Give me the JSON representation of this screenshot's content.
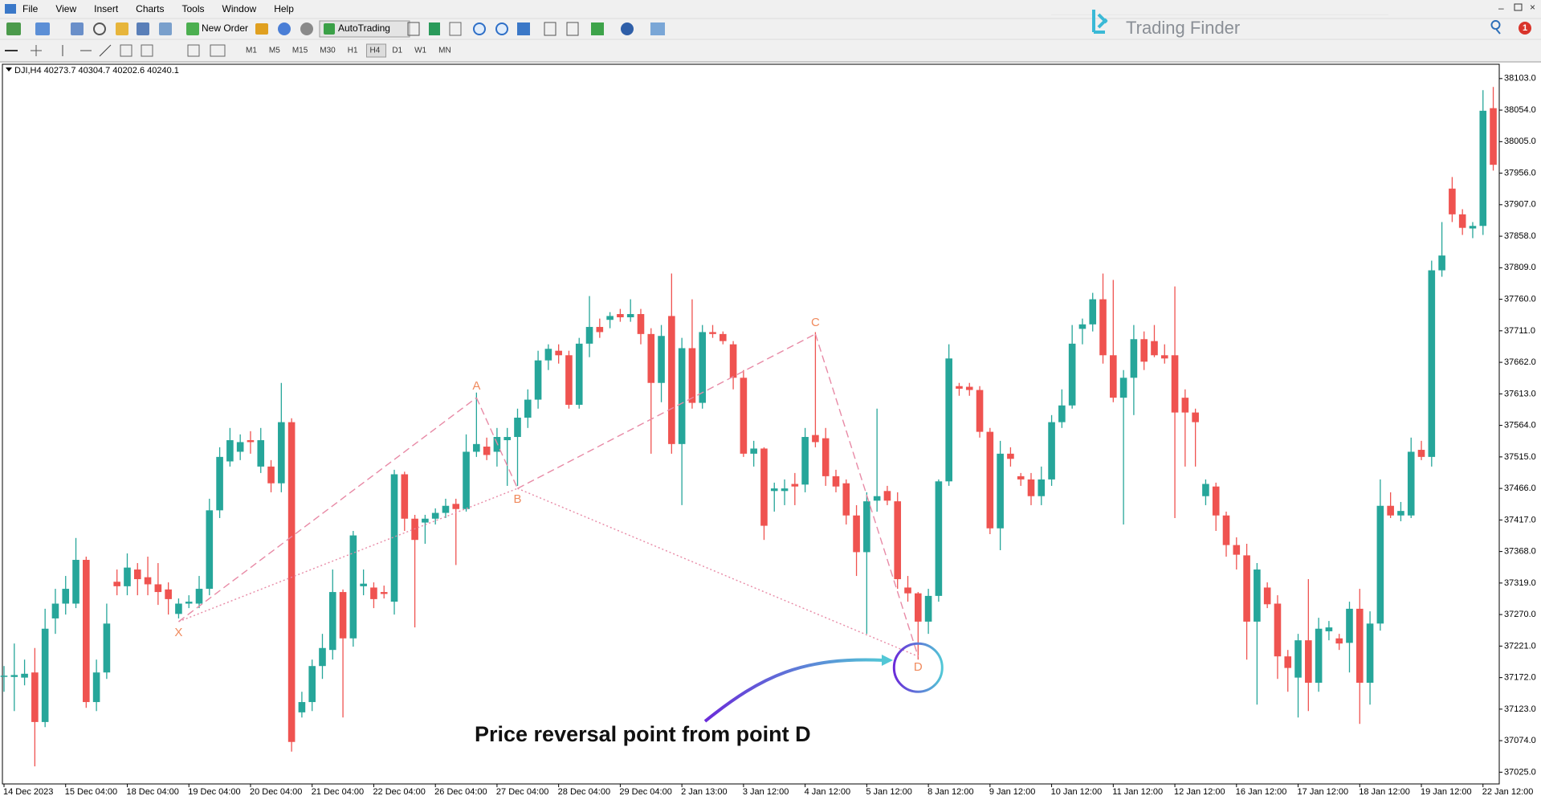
{
  "menu": [
    "File",
    "View",
    "Insert",
    "Charts",
    "Tools",
    "Window",
    "Help"
  ],
  "toolbar": {
    "new_order": "New Order",
    "autotrading": "AutoTrading",
    "timeframes": [
      "M1",
      "M5",
      "M15",
      "M30",
      "H1",
      "H4",
      "D1",
      "W1",
      "MN"
    ]
  },
  "logo": "Trading Finder",
  "notification_count": 1,
  "chart_data": {
    "type": "candlestick",
    "title": "DJI,H4  40273.7 40304.7 40202.6 40240.1",
    "annotation": "Price reversal point from point D",
    "up_color": "#26a69a",
    "down_color": "#ef5350",
    "ylim": [
      37008,
      38124
    ],
    "yticks": [
      {
        "value": 38103,
        "label": "38103.0"
      },
      {
        "value": 38054,
        "label": "38054.0"
      },
      {
        "value": 38005,
        "label": "38005.0"
      },
      {
        "value": 37956,
        "label": "37956.0"
      },
      {
        "value": 37907,
        "label": "37907.0"
      },
      {
        "value": 37858,
        "label": "37858.0"
      },
      {
        "value": 37809,
        "label": "37809.0"
      },
      {
        "value": 37760,
        "label": "37760.0"
      },
      {
        "value": 37711,
        "label": "37711.0"
      },
      {
        "value": 37662,
        "label": "37662.0"
      },
      {
        "value": 37613,
        "label": "37613.0"
      },
      {
        "value": 37564,
        "label": "37564.0"
      },
      {
        "value": 37515,
        "label": "37515.0"
      },
      {
        "value": 37466,
        "label": "37466.0"
      },
      {
        "value": 37417,
        "label": "37417.0"
      },
      {
        "value": 37368,
        "label": "37368.0"
      },
      {
        "value": 37319,
        "label": "37319.0"
      },
      {
        "value": 37270,
        "label": "37270.0"
      },
      {
        "value": 37221,
        "label": "37221.0"
      },
      {
        "value": 37172,
        "label": "37172.0"
      },
      {
        "value": 37123,
        "label": "37123.0"
      },
      {
        "value": 37074,
        "label": "37074.0"
      },
      {
        "value": 37025,
        "label": "37025.0"
      }
    ],
    "x_labels": [
      "14 Dec 2023",
      "15 Dec 04:00",
      "18 Dec 04:00",
      "19 Dec 04:00",
      "20 Dec 04:00",
      "21 Dec 04:00",
      "22 Dec 04:00",
      "26 Dec 04:00",
      "27 Dec 04:00",
      "28 Dec 04:00",
      "29 Dec 04:00",
      "2 Jan 13:00",
      "3 Jan 12:00",
      "4 Jan 12:00",
      "5 Jan 12:00",
      "8 Jan 12:00",
      "9 Jan 12:00",
      "10 Jan 12:00",
      "11 Jan 12:00",
      "12 Jan 12:00",
      "16 Jan 12:00",
      "17 Jan 12:00",
      "18 Jan 12:00",
      "19 Jan 12:00",
      "22 Jan 12:00"
    ],
    "candles": [
      [
        37175,
        37190,
        37150,
        37175
      ],
      [
        37173,
        37225,
        37120,
        37176
      ],
      [
        37172,
        37200,
        37160,
        37178
      ],
      [
        37180,
        37218,
        37034,
        37103
      ],
      [
        37103,
        37279,
        37095,
        37248
      ],
      [
        37264,
        37310,
        37240,
        37287
      ],
      [
        37287,
        37330,
        37270,
        37310
      ],
      [
        37287,
        37389,
        37280,
        37355
      ],
      [
        37355,
        37360,
        37125,
        37134
      ],
      [
        37134,
        37200,
        37120,
        37180
      ],
      [
        37180,
        37287,
        37170,
        37256
      ],
      [
        37321,
        37340,
        37300,
        37314
      ],
      [
        37314,
        37365,
        37300,
        37343
      ],
      [
        37340,
        37350,
        37300,
        37325
      ],
      [
        37328,
        37360,
        37300,
        37317
      ],
      [
        37317,
        37350,
        37285,
        37305
      ],
      [
        37309,
        37320,
        37270,
        37294
      ],
      [
        37271,
        37295,
        37264,
        37287
      ],
      [
        37287,
        37300,
        37280,
        37290
      ],
      [
        37287,
        37330,
        37280,
        37310
      ],
      [
        37310,
        37450,
        37300,
        37432
      ],
      [
        37432,
        37530,
        37420,
        37515
      ],
      [
        37508,
        37560,
        37500,
        37541
      ],
      [
        37523,
        37550,
        37510,
        37538
      ],
      [
        37541,
        37555,
        37520,
        37538
      ],
      [
        37500,
        37560,
        37490,
        37541
      ],
      [
        37500,
        37510,
        37460,
        37474
      ],
      [
        37474,
        37630,
        37460,
        37569
      ],
      [
        37569,
        37575,
        37057,
        37072
      ],
      [
        37118,
        37150,
        37110,
        37134
      ],
      [
        37134,
        37200,
        37120,
        37190
      ],
      [
        37190,
        37240,
        37170,
        37218
      ],
      [
        37215,
        37340,
        37200,
        37305
      ],
      [
        37305,
        37309,
        37110,
        37233
      ],
      [
        37233,
        37400,
        37220,
        37393
      ],
      [
        37314,
        37340,
        37300,
        37318
      ],
      [
        37312,
        37320,
        37280,
        37294
      ],
      [
        37305,
        37315,
        37295,
        37302
      ],
      [
        37290,
        37495,
        37270,
        37488
      ],
      [
        37488,
        37492,
        37400,
        37419
      ],
      [
        37419,
        37425,
        37250,
        37386
      ],
      [
        37413,
        37425,
        37380,
        37419
      ],
      [
        37419,
        37435,
        37410,
        37428
      ],
      [
        37428,
        37450,
        37420,
        37439
      ],
      [
        37442,
        37450,
        37347,
        37434
      ],
      [
        37434,
        37550,
        37430,
        37523
      ],
      [
        37523,
        37615,
        37515,
        37535
      ],
      [
        37531,
        37545,
        37510,
        37518
      ],
      [
        37523,
        37560,
        37500,
        37546
      ],
      [
        37541,
        37560,
        37470,
        37546
      ],
      [
        37546,
        37590,
        37470,
        37576
      ],
      [
        37576,
        37620,
        37560,
        37604
      ],
      [
        37604,
        37680,
        37590,
        37665
      ],
      [
        37665,
        37690,
        37650,
        37683
      ],
      [
        37680,
        37690,
        37660,
        37673
      ],
      [
        37673,
        37680,
        37590,
        37596
      ],
      [
        37596,
        37700,
        37590,
        37691
      ],
      [
        37691,
        37765,
        37670,
        37717
      ],
      [
        37717,
        37730,
        37700,
        37709
      ],
      [
        37728,
        37740,
        37715,
        37734
      ],
      [
        37737,
        37745,
        37725,
        37732
      ],
      [
        37732,
        37760,
        37725,
        37737
      ],
      [
        37737,
        37745,
        37690,
        37706
      ],
      [
        37706,
        37715,
        37520,
        37630
      ],
      [
        37630,
        37720,
        37600,
        37703
      ],
      [
        37734,
        37800,
        37520,
        37535
      ],
      [
        37535,
        37700,
        37440,
        37684
      ],
      [
        37684,
        37760,
        37590,
        37599
      ],
      [
        37599,
        37720,
        37590,
        37709
      ],
      [
        37709,
        37720,
        37700,
        37706
      ],
      [
        37706,
        37710,
        37690,
        37695
      ],
      [
        37690,
        37695,
        37620,
        37638
      ],
      [
        37638,
        37650,
        37515,
        37520
      ],
      [
        37520,
        37540,
        37500,
        37528
      ],
      [
        37528,
        37530,
        37386,
        37408
      ],
      [
        37462,
        37475,
        37430,
        37466
      ],
      [
        37462,
        37480,
        37440,
        37466
      ],
      [
        37473,
        37490,
        37440,
        37469
      ],
      [
        37472,
        37560,
        37460,
        37546
      ],
      [
        37549,
        37709,
        37530,
        37538
      ],
      [
        37544,
        37560,
        37470,
        37485
      ],
      [
        37485,
        37495,
        37460,
        37469
      ],
      [
        37474,
        37480,
        37410,
        37424
      ],
      [
        37424,
        37440,
        37330,
        37367
      ],
      [
        37367,
        37460,
        37240,
        37446
      ],
      [
        37447,
        37590,
        37430,
        37454
      ],
      [
        37462,
        37470,
        37440,
        37447
      ],
      [
        37446,
        37460,
        37310,
        37325
      ],
      [
        37312,
        37330,
        37290,
        37303
      ],
      [
        37303,
        37305,
        37200,
        37259
      ],
      [
        37259,
        37310,
        37240,
        37299
      ],
      [
        37299,
        37480,
        37290,
        37477
      ],
      [
        37477,
        37690,
        37470,
        37668
      ],
      [
        37625,
        37630,
        37610,
        37621
      ],
      [
        37624,
        37630,
        37610,
        37619
      ],
      [
        37619,
        37625,
        37545,
        37554
      ],
      [
        37554,
        37560,
        37395,
        37404
      ],
      [
        37404,
        37540,
        37370,
        37520
      ],
      [
        37520,
        37530,
        37500,
        37512
      ],
      [
        37485,
        37490,
        37470,
        37480
      ],
      [
        37480,
        37490,
        37440,
        37454
      ],
      [
        37454,
        37500,
        37440,
        37480
      ],
      [
        37480,
        37580,
        37470,
        37569
      ],
      [
        37569,
        37620,
        37560,
        37595
      ],
      [
        37595,
        37720,
        37590,
        37691
      ],
      [
        37714,
        37730,
        37690,
        37721
      ],
      [
        37721,
        37770,
        37710,
        37760
      ],
      [
        37760,
        37800,
        37660,
        37673
      ],
      [
        37673,
        37790,
        37600,
        37607
      ],
      [
        37607,
        37650,
        37410,
        37638
      ],
      [
        37638,
        37720,
        37580,
        37698
      ],
      [
        37698,
        37710,
        37650,
        37663
      ],
      [
        37695,
        37720,
        37670,
        37673
      ],
      [
        37673,
        37690,
        37660,
        37668
      ],
      [
        37673,
        37780,
        37420,
        37584
      ],
      [
        37607,
        37620,
        37500,
        37584
      ],
      [
        37584,
        37590,
        37500,
        37569
      ],
      [
        37454,
        37480,
        37440,
        37473
      ],
      [
        37469,
        37475,
        37400,
        37424
      ],
      [
        37424,
        37430,
        37360,
        37378
      ],
      [
        37378,
        37390,
        37340,
        37363
      ],
      [
        37362,
        37380,
        37200,
        37259
      ],
      [
        37259,
        37350,
        37130,
        37340
      ],
      [
        37312,
        37320,
        37280,
        37286
      ],
      [
        37287,
        37300,
        37170,
        37205
      ],
      [
        37205,
        37215,
        37150,
        37187
      ],
      [
        37172,
        37240,
        37110,
        37230
      ],
      [
        37230,
        37325,
        37120,
        37164
      ],
      [
        37164,
        37265,
        37150,
        37248
      ],
      [
        37244,
        37260,
        37230,
        37250
      ],
      [
        37233,
        37240,
        37215,
        37225
      ],
      [
        37226,
        37290,
        37180,
        37279
      ],
      [
        37279,
        37310,
        37100,
        37164
      ],
      [
        37164,
        37275,
        37130,
        37256
      ],
      [
        37256,
        37480,
        37245,
        37439
      ],
      [
        37439,
        37460,
        37420,
        37424
      ],
      [
        37424,
        37445,
        37415,
        37431
      ],
      [
        37424,
        37545,
        37420,
        37523
      ],
      [
        37526,
        37540,
        37510,
        37515
      ],
      [
        37515,
        37820,
        37500,
        37805
      ],
      [
        37805,
        37880,
        37795,
        37828
      ],
      [
        37932,
        37950,
        37880,
        37892
      ],
      [
        37892,
        37900,
        37860,
        37871
      ],
      [
        37870,
        37880,
        37855,
        37874
      ],
      [
        37874,
        38085,
        37860,
        38053
      ],
      [
        38057,
        38090,
        37960,
        37969
      ]
    ],
    "pattern": {
      "color": "#e88aa6",
      "label_color": "#f08a5d",
      "points": [
        {
          "label": "X",
          "index": 17,
          "value": 37259
        },
        {
          "label": "A",
          "index": 46,
          "value": 37607
        },
        {
          "label": "B",
          "index": 50,
          "value": 37466
        },
        {
          "label": "C",
          "index": 79,
          "value": 37706
        },
        {
          "label": "D",
          "index": 89,
          "value": 37205
        }
      ]
    }
  }
}
